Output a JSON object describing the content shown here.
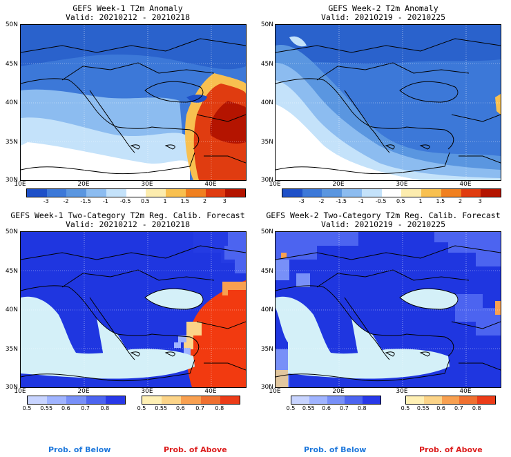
{
  "panels": [
    {
      "title": "GEFS Week-1 T2m Anomaly",
      "valid": "Valid: 20210212 - 20210218"
    },
    {
      "title": "GEFS Week-2 T2m Anomaly",
      "valid": "Valid: 20210219 - 20210225"
    },
    {
      "title": "GEFS Week-1 Two-Category T2m Reg. Calib. Forecast",
      "valid": "Valid: 20210212 - 20210218"
    },
    {
      "title": "GEFS Week-2 Two-Category T2m Reg. Calib. Forecast",
      "valid": "Valid: 20210219 - 20210225"
    }
  ],
  "lat_labels": [
    "50N",
    "45N",
    "40N",
    "35N",
    "30N"
  ],
  "lon_labels": [
    "10E",
    "20E",
    "30E",
    "40E"
  ],
  "anomaly_colorbar": {
    "labels": [
      "-3",
      "-2",
      "-1.5",
      "-1",
      "-0.5",
      "0.5",
      "1",
      "1.5",
      "2",
      "3"
    ],
    "colors": [
      "#1e50c8",
      "#3c78d8",
      "#5a96e0",
      "#8cbcf0",
      "#c4e2fa",
      "#ffffff",
      "#fcecae",
      "#f8c050",
      "#f08020",
      "#e03c10",
      "#b41400"
    ]
  },
  "below_colorbar": {
    "labels": [
      "0.5",
      "0.55",
      "0.6",
      "0.7",
      "0.8"
    ],
    "colors": [
      "#c8d4ff",
      "#a0b4ff",
      "#7890f8",
      "#4c64f0",
      "#2838e8"
    ]
  },
  "above_colorbar": {
    "labels": [
      "0.5",
      "0.55",
      "0.6",
      "0.7",
      "0.8"
    ],
    "colors": [
      "#fff0b4",
      "#fcd488",
      "#f8a050",
      "#f07030",
      "#ec3c18"
    ]
  },
  "legend": {
    "below": "Prob. of Below",
    "above": "Prob. of Above"
  },
  "colors": {
    "below_text": "#1e78dc",
    "above_text": "#dc1e1e",
    "sea_light": "#d4f0f8",
    "prob_blue": "#1f36e0",
    "prob_red": "#f23a10"
  }
}
